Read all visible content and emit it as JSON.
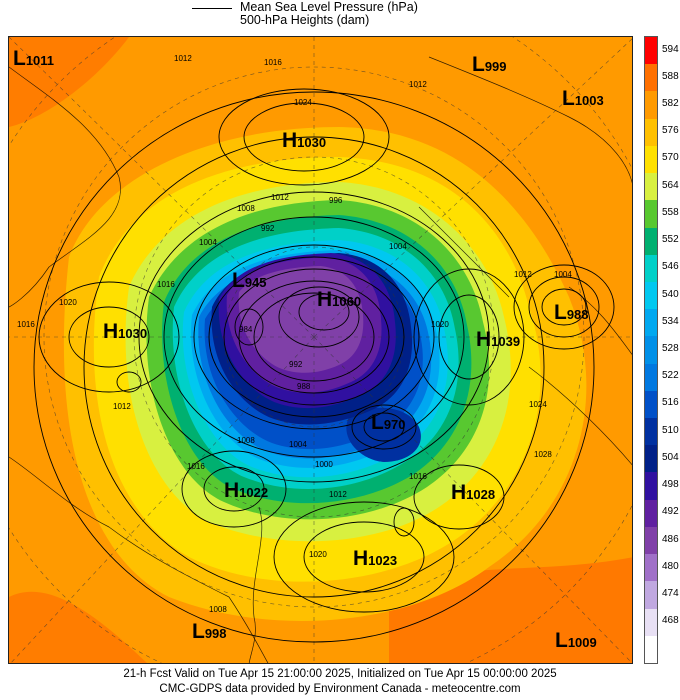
{
  "legend": {
    "line1": "Mean Sea Level Pressure (hPa)",
    "line2": "500-hPa Heights (dam)"
  },
  "colorbar": [
    {
      "label": "594",
      "color": "#ff0000"
    },
    {
      "label": "588",
      "color": "#ff7000"
    },
    {
      "label": "582",
      "color": "#ff9a00"
    },
    {
      "label": "576",
      "color": "#ffc000"
    },
    {
      "label": "570",
      "color": "#ffe000"
    },
    {
      "label": "564",
      "color": "#d8f040"
    },
    {
      "label": "558",
      "color": "#58c830"
    },
    {
      "label": "552",
      "color": "#00b070"
    },
    {
      "label": "546",
      "color": "#00d0c8"
    },
    {
      "label": "540",
      "color": "#00c8f0"
    },
    {
      "label": "534",
      "color": "#00a8f0"
    },
    {
      "label": "528",
      "color": "#0090e8"
    },
    {
      "label": "522",
      "color": "#0078e0"
    },
    {
      "label": "516",
      "color": "#0050c8"
    },
    {
      "label": "510",
      "color": "#0030a0"
    },
    {
      "label": "504",
      "color": "#002088"
    },
    {
      "label": "498",
      "color": "#3010a0"
    },
    {
      "label": "492",
      "color": "#6020a0"
    },
    {
      "label": "486",
      "color": "#8040a8"
    },
    {
      "label": "480",
      "color": "#a070c8"
    },
    {
      "label": "474",
      "color": "#c0a8e0"
    },
    {
      "label": "468",
      "color": "#e8e0f4"
    },
    {
      "label": "",
      "color": "#ffffff"
    }
  ],
  "systems": [
    {
      "type": "L",
      "value": "1011"
    },
    {
      "type": "L",
      "value": "999"
    },
    {
      "type": "L",
      "value": "1003"
    },
    {
      "type": "H",
      "value": "1030"
    },
    {
      "type": "H",
      "value": "1030"
    },
    {
      "type": "L",
      "value": "945"
    },
    {
      "type": "H",
      "value": "1060"
    },
    {
      "type": "H",
      "value": "1039"
    },
    {
      "type": "L",
      "value": "988"
    },
    {
      "type": "L",
      "value": "970"
    },
    {
      "type": "H",
      "value": "1022"
    },
    {
      "type": "H",
      "value": "1028"
    },
    {
      "type": "H",
      "value": "1023"
    },
    {
      "type": "L",
      "value": "998"
    },
    {
      "type": "L",
      "value": "1009"
    }
  ],
  "isobar_labels": [
    "1012",
    "1016",
    "1024",
    "1012",
    "1008",
    "1012",
    "996",
    "992",
    "1004",
    "1016",
    "1020",
    "1016",
    "1012",
    "1020",
    "1004",
    "1012",
    "1024",
    "1028",
    "1008",
    "1004",
    "1000",
    "1012",
    "1016",
    "1020",
    "1016",
    "1004",
    "992",
    "988",
    "984",
    "1008"
  ],
  "footer": {
    "line1": "21-h Fcst Valid on Tue Apr 15 21:00:00 2025, Initialized on Tue Apr 15 00:00:00 2025",
    "line2": "CMC-GDPS data provided by Environment Canada - meteocentre.com"
  }
}
